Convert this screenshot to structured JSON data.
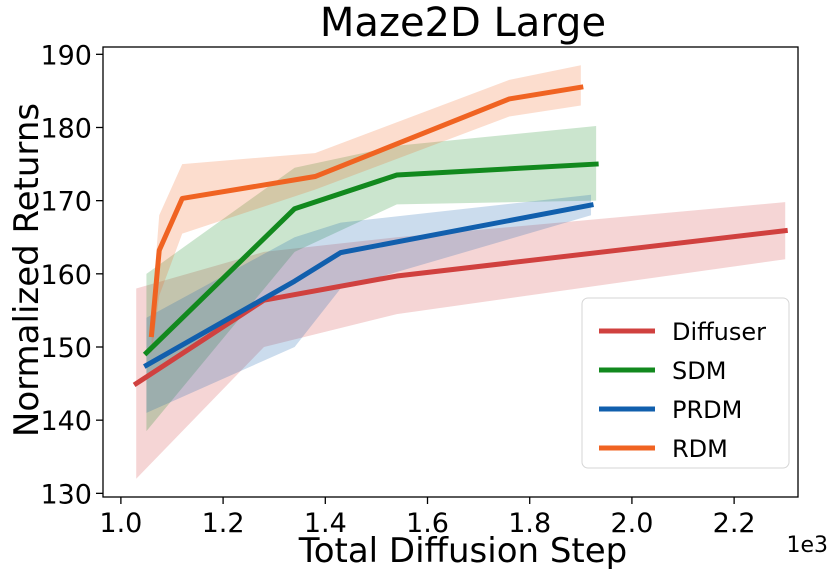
{
  "chart_data": {
    "type": "line",
    "title": "Maze2D Large",
    "xlabel": "Total Diffusion Step",
    "ylabel": "Normalized Returns",
    "x_multiplier_label": "1e3",
    "xlim": [
      0.965,
      2.325
    ],
    "ylim": [
      129.5,
      191.0
    ],
    "xticks": [
      1.0,
      1.2,
      1.4,
      1.6,
      1.8,
      2.0,
      2.2
    ],
    "xtick_labels": [
      "1.0",
      "1.2",
      "1.4",
      "1.6",
      "1.8",
      "2.0",
      "2.2"
    ],
    "yticks": [
      130,
      140,
      150,
      160,
      170,
      180,
      190
    ],
    "ytick_labels": [
      "130",
      "140",
      "150",
      "160",
      "170",
      "180",
      "190"
    ],
    "legend_position": "lower-right",
    "series": [
      {
        "name": "Diffuser",
        "color": "#d0413f",
        "x": [
          1.03,
          1.28,
          1.54,
          2.3
        ],
        "y": [
          145.0,
          156.4,
          159.7,
          165.9
        ],
        "lower": [
          132.0,
          150.0,
          154.5,
          162.0
        ],
        "upper": [
          158.0,
          163.0,
          165.0,
          169.8
        ]
      },
      {
        "name": "SDM",
        "color": "#12891e",
        "x": [
          1.05,
          1.34,
          1.54,
          1.93
        ],
        "y": [
          149.2,
          168.9,
          173.5,
          175.0
        ],
        "lower": [
          138.5,
          163.0,
          169.5,
          170.0
        ],
        "upper": [
          160.0,
          174.5,
          177.5,
          180.2
        ]
      },
      {
        "name": "PRDM",
        "color": "#115fad",
        "x": [
          1.05,
          1.34,
          1.43,
          1.92
        ],
        "y": [
          147.5,
          159.0,
          162.9,
          169.4
        ],
        "lower": [
          141.0,
          150.0,
          158.0,
          168.0
        ],
        "upper": [
          154.0,
          165.0,
          167.0,
          170.8
        ]
      },
      {
        "name": "RDM",
        "color": "#f06322",
        "x": [
          1.06,
          1.075,
          1.12,
          1.38,
          1.76,
          1.9
        ],
        "y": [
          151.7,
          163.2,
          170.3,
          173.3,
          183.9,
          185.5
        ],
        "lower": [
          149.0,
          157.0,
          165.5,
          171.5,
          181.5,
          183.0
        ],
        "upper": [
          154.5,
          168.0,
          175.0,
          176.5,
          186.5,
          188.5
        ]
      }
    ]
  }
}
